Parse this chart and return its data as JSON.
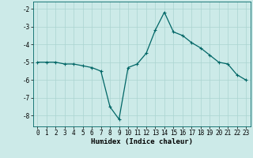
{
  "x": [
    0,
    1,
    2,
    3,
    4,
    5,
    6,
    7,
    8,
    9,
    10,
    11,
    12,
    13,
    14,
    15,
    16,
    17,
    18,
    19,
    20,
    21,
    22,
    23
  ],
  "y": [
    -5.0,
    -5.0,
    -5.0,
    -5.1,
    -5.1,
    -5.2,
    -5.3,
    -5.5,
    -7.5,
    -8.2,
    -5.3,
    -5.1,
    -4.5,
    -3.2,
    -2.2,
    -3.3,
    -3.5,
    -3.9,
    -4.2,
    -4.6,
    -5.0,
    -5.1,
    -5.7,
    -6.0
  ],
  "line_color": "#006666",
  "marker": "+",
  "bg_color": "#cceae8",
  "grid_color": "#aad4d0",
  "xlabel": "Humidex (Indice chaleur)",
  "xlim": [
    -0.5,
    23.5
  ],
  "ylim": [
    -8.6,
    -1.6
  ],
  "yticks": [
    -8,
    -7,
    -6,
    -5,
    -4,
    -3,
    -2
  ],
  "xticks": [
    0,
    1,
    2,
    3,
    4,
    5,
    6,
    7,
    8,
    9,
    10,
    11,
    12,
    13,
    14,
    15,
    16,
    17,
    18,
    19,
    20,
    21,
    22,
    23
  ],
  "label_fontsize": 6.5,
  "tick_fontsize": 5.5,
  "marker_size": 3,
  "linewidth": 0.9
}
